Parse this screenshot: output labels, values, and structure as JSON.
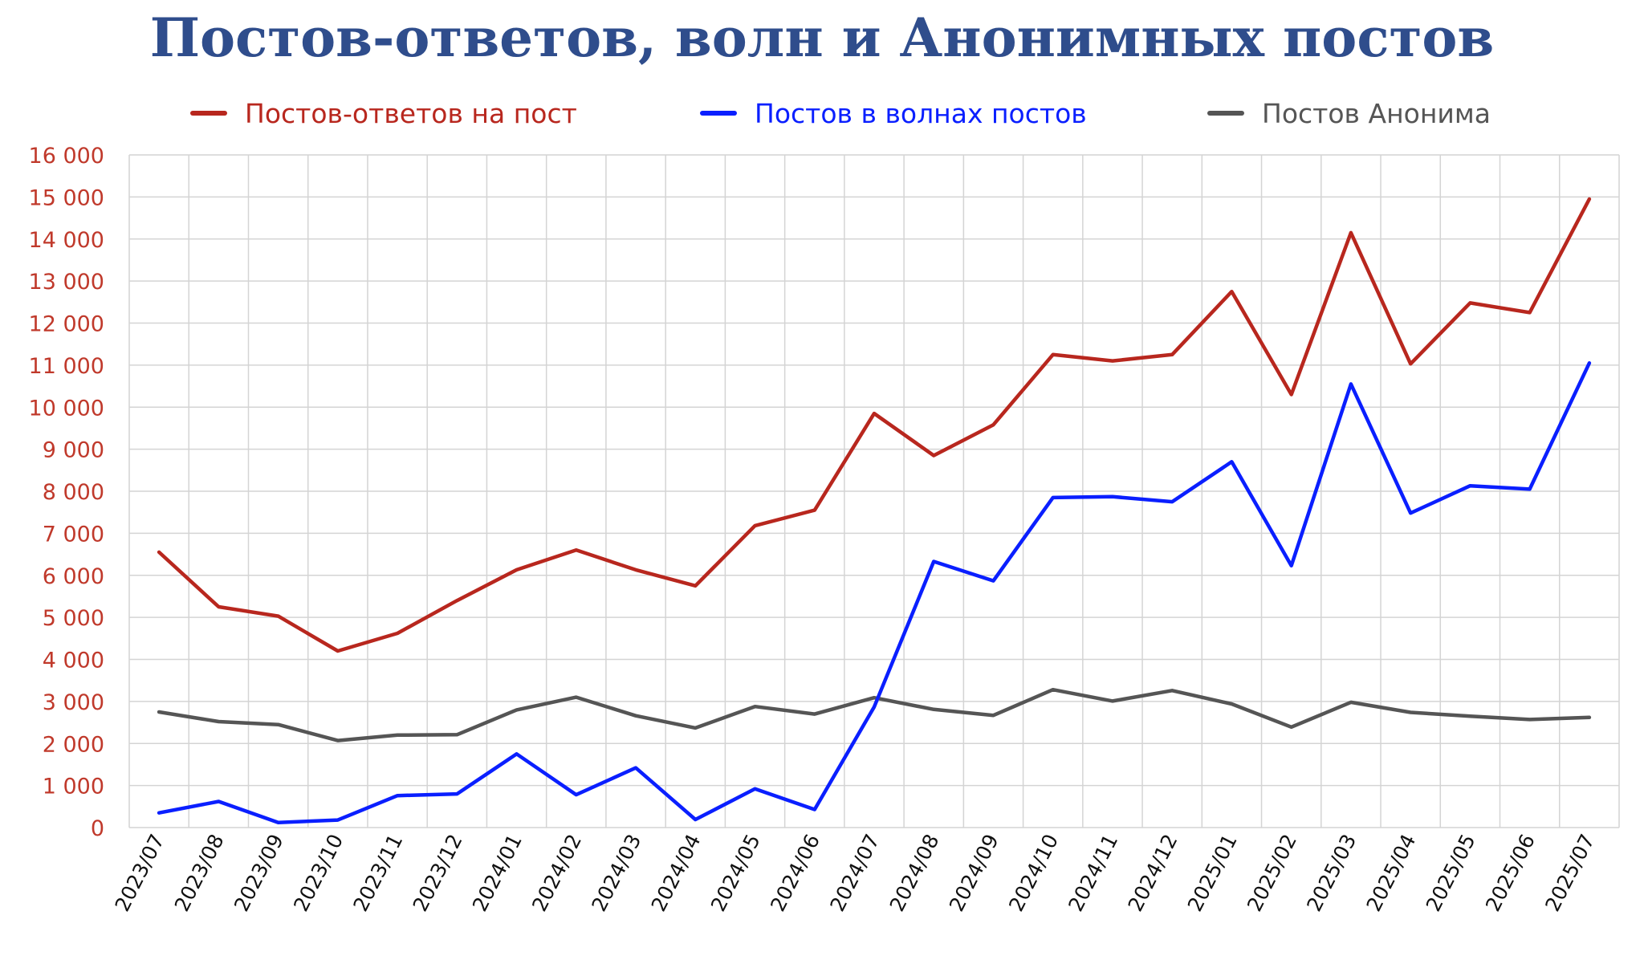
{
  "chart_data": {
    "type": "line",
    "title": "Постов-ответов, волн и Анонимных постов",
    "xlabel": "",
    "ylabel": "",
    "ylim": [
      0,
      16000
    ],
    "yticks": [
      0,
      1000,
      2000,
      3000,
      4000,
      5000,
      6000,
      7000,
      8000,
      9000,
      10000,
      11000,
      12000,
      13000,
      14000,
      15000,
      16000
    ],
    "ytick_labels": [
      "0",
      "1 000",
      "2 000",
      "3 000",
      "4 000",
      "5 000",
      "6 000",
      "7 000",
      "8 000",
      "9 000",
      "10 000",
      "11 000",
      "12 000",
      "13 000",
      "14 000",
      "15 000",
      "16 000"
    ],
    "grid": true,
    "legend_position": "top",
    "categories": [
      "2023/07",
      "2023/08",
      "2023/09",
      "2023/10",
      "2023/11",
      "2023/12",
      "2024/01",
      "2024/02",
      "2024/03",
      "2024/04",
      "2024/05",
      "2024/06",
      "2024/07",
      "2024/08",
      "2024/09",
      "2024/10",
      "2024/11",
      "2024/12",
      "2025/01",
      "2025/02",
      "2025/03",
      "2025/04",
      "2025/05",
      "2025/06",
      "2025/07"
    ],
    "series": [
      {
        "name": "Постов-ответов на пост",
        "color": "#b8271e",
        "values": [
          6550,
          5250,
          5030,
          4200,
          4620,
          5400,
          6130,
          6600,
          6130,
          5750,
          7180,
          7550,
          9850,
          8850,
          9580,
          11250,
          11100,
          11250,
          12750,
          10300,
          14150,
          11030,
          12480,
          12250,
          14950
        ]
      },
      {
        "name": "Постов в волнах постов",
        "color": "#0a1fff",
        "values": [
          350,
          620,
          120,
          180,
          760,
          800,
          1750,
          780,
          1420,
          190,
          920,
          430,
          2870,
          6330,
          5870,
          7850,
          7870,
          7750,
          8700,
          6230,
          10550,
          7480,
          8130,
          8050,
          11050
        ]
      },
      {
        "name": "Постов Анонима",
        "color": "#555555",
        "values": [
          2750,
          2520,
          2450,
          2070,
          2200,
          2210,
          2800,
          3100,
          2660,
          2370,
          2880,
          2700,
          3090,
          2810,
          2670,
          3280,
          3010,
          3260,
          2940,
          2390,
          2980,
          2740,
          2650,
          2570,
          2620
        ]
      }
    ]
  }
}
